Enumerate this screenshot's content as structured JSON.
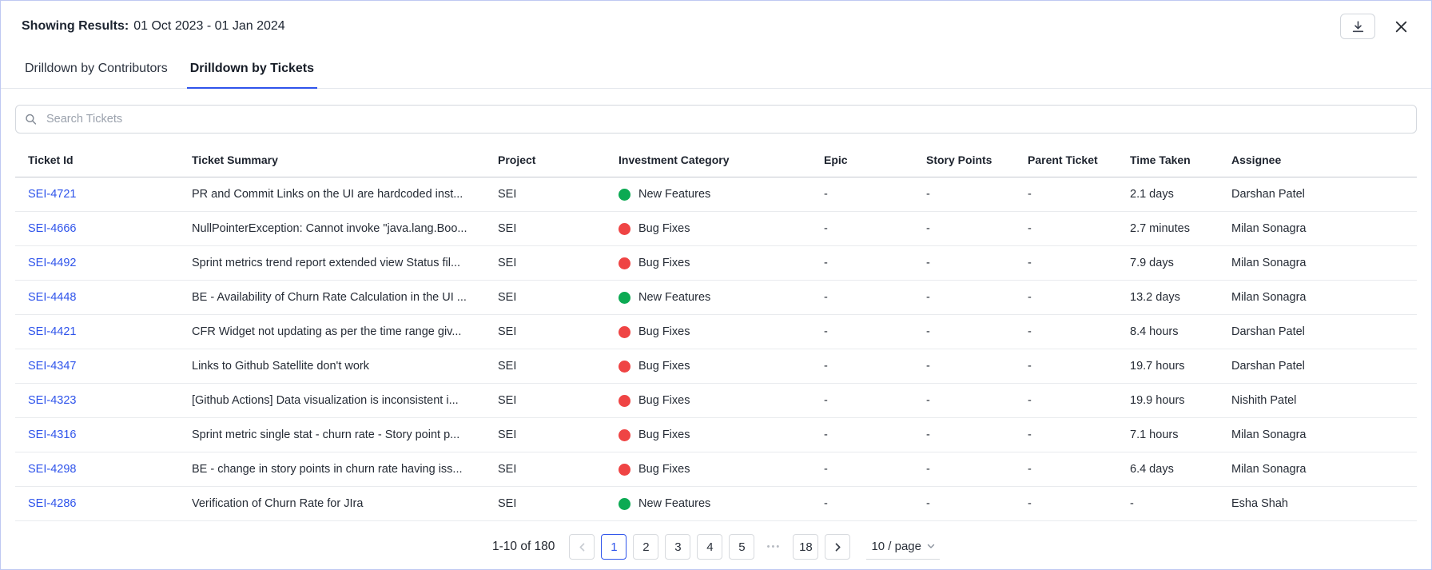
{
  "colors": {
    "accent_blue": "#2f54eb",
    "link_blue": "#2f54eb",
    "new_features_green": "#0caa53",
    "bug_fixes_red": "#ef4444"
  },
  "header": {
    "results_label": "Showing Results:",
    "date_range": "01 Oct 2023 - 01 Jan 2024"
  },
  "icons": {
    "download": "tray-arrow-down",
    "close": "x-mark",
    "search": "magnifier",
    "prev": "chevron-left",
    "next": "chevron-right",
    "page_size": "chevron-down"
  },
  "tabs": [
    {
      "label": "Drilldown by Contributors",
      "active": false
    },
    {
      "label": "Drilldown by Tickets",
      "active": true
    }
  ],
  "search": {
    "placeholder": "Search Tickets"
  },
  "table": {
    "columns": [
      "Ticket Id",
      "Ticket Summary",
      "Project",
      "Investment Category",
      "Epic",
      "Story Points",
      "Parent Ticket",
      "Time Taken",
      "Assignee"
    ],
    "category_colors": {
      "New Features": "#0caa53",
      "Bug Fixes": "#ef4444"
    },
    "rows": [
      {
        "ticket_id": "SEI-4721",
        "summary": "PR and Commit Links on the UI are hardcoded inst...",
        "project": "SEI",
        "category": "New Features",
        "epic": "-",
        "story_points": "-",
        "parent_ticket": "-",
        "time_taken": "2.1 days",
        "assignee": "Darshan Patel"
      },
      {
        "ticket_id": "SEI-4666",
        "summary": "NullPointerException: Cannot invoke \"java.lang.Boo...",
        "project": "SEI",
        "category": "Bug Fixes",
        "epic": "-",
        "story_points": "-",
        "parent_ticket": "-",
        "time_taken": "2.7 minutes",
        "assignee": "Milan Sonagra"
      },
      {
        "ticket_id": "SEI-4492",
        "summary": "Sprint metrics trend report extended view Status fil...",
        "project": "SEI",
        "category": "Bug Fixes",
        "epic": "-",
        "story_points": "-",
        "parent_ticket": "-",
        "time_taken": "7.9 days",
        "assignee": "Milan Sonagra"
      },
      {
        "ticket_id": "SEI-4448",
        "summary": "BE - Availability of Churn Rate Calculation in the UI ...",
        "project": "SEI",
        "category": "New Features",
        "epic": "-",
        "story_points": "-",
        "parent_ticket": "-",
        "time_taken": "13.2 days",
        "assignee": "Milan Sonagra"
      },
      {
        "ticket_id": "SEI-4421",
        "summary": "CFR Widget not updating as per the time range giv...",
        "project": "SEI",
        "category": "Bug Fixes",
        "epic": "-",
        "story_points": "-",
        "parent_ticket": "-",
        "time_taken": "8.4 hours",
        "assignee": "Darshan Patel"
      },
      {
        "ticket_id": "SEI-4347",
        "summary": "Links to Github Satellite don't work",
        "project": "SEI",
        "category": "Bug Fixes",
        "epic": "-",
        "story_points": "-",
        "parent_ticket": "-",
        "time_taken": "19.7 hours",
        "assignee": "Darshan Patel"
      },
      {
        "ticket_id": "SEI-4323",
        "summary": "[Github Actions] Data visualization is inconsistent i...",
        "project": "SEI",
        "category": "Bug Fixes",
        "epic": "-",
        "story_points": "-",
        "parent_ticket": "-",
        "time_taken": "19.9 hours",
        "assignee": "Nishith Patel"
      },
      {
        "ticket_id": "SEI-4316",
        "summary": "Sprint metric single stat - churn rate - Story point p...",
        "project": "SEI",
        "category": "Bug Fixes",
        "epic": "-",
        "story_points": "-",
        "parent_ticket": "-",
        "time_taken": "7.1 hours",
        "assignee": "Milan Sonagra"
      },
      {
        "ticket_id": "SEI-4298",
        "summary": "BE - change in story points in churn rate having iss...",
        "project": "SEI",
        "category": "Bug Fixes",
        "epic": "-",
        "story_points": "-",
        "parent_ticket": "-",
        "time_taken": "6.4 days",
        "assignee": "Milan Sonagra"
      },
      {
        "ticket_id": "SEI-4286",
        "summary": "Verification of Churn Rate for JIra",
        "project": "SEI",
        "category": "New Features",
        "epic": "-",
        "story_points": "-",
        "parent_ticket": "-",
        "time_taken": "-",
        "assignee": "Esha Shah"
      }
    ]
  },
  "pagination": {
    "range_text": "1-10 of 180",
    "active_page": "1",
    "pages": [
      "1",
      "2",
      "3",
      "4",
      "5",
      "•••",
      "18"
    ],
    "page_size": "10 / page"
  }
}
